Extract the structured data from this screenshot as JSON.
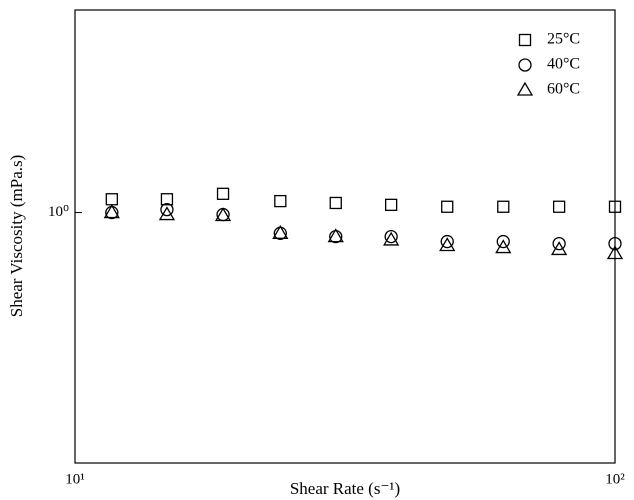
{
  "chart_data": {
    "type": "scatter",
    "x_label": "Shear Rate (s⁻¹)",
    "y_label": "Shear Viscosity (mPa.s)",
    "x_scale": "log",
    "y_scale": "log",
    "xlim": [
      10,
      100
    ],
    "ylim": [
      0.28,
      2.8
    ],
    "xticks": [
      {
        "value": 10,
        "label": "10¹"
      },
      {
        "value": 100,
        "label": "10²"
      }
    ],
    "yticks": [
      {
        "value": 1,
        "label": "10⁰"
      }
    ],
    "legend": "upper right",
    "x": [
      11.7,
      14.8,
      18.8,
      24,
      30.4,
      38.5,
      48.9,
      62.1,
      78.8,
      100
    ],
    "series": [
      {
        "name": "25°C",
        "color": "#000000",
        "marker": "square",
        "values": [
          1.07,
          1.07,
          1.1,
          1.06,
          1.05,
          1.04,
          1.03,
          1.03,
          1.03,
          1.03
        ]
      },
      {
        "name": "40°C",
        "color": "#000000",
        "marker": "circle",
        "values": [
          1.0,
          1.015,
          0.99,
          0.9,
          0.885,
          0.885,
          0.863,
          0.863,
          0.854,
          0.854
        ]
      },
      {
        "name": "60°C",
        "color": "#000000",
        "marker": "triangle",
        "values": [
          1.0,
          0.99,
          0.985,
          0.9,
          0.885,
          0.87,
          0.846,
          0.837,
          0.829,
          0.812
        ]
      }
    ]
  }
}
